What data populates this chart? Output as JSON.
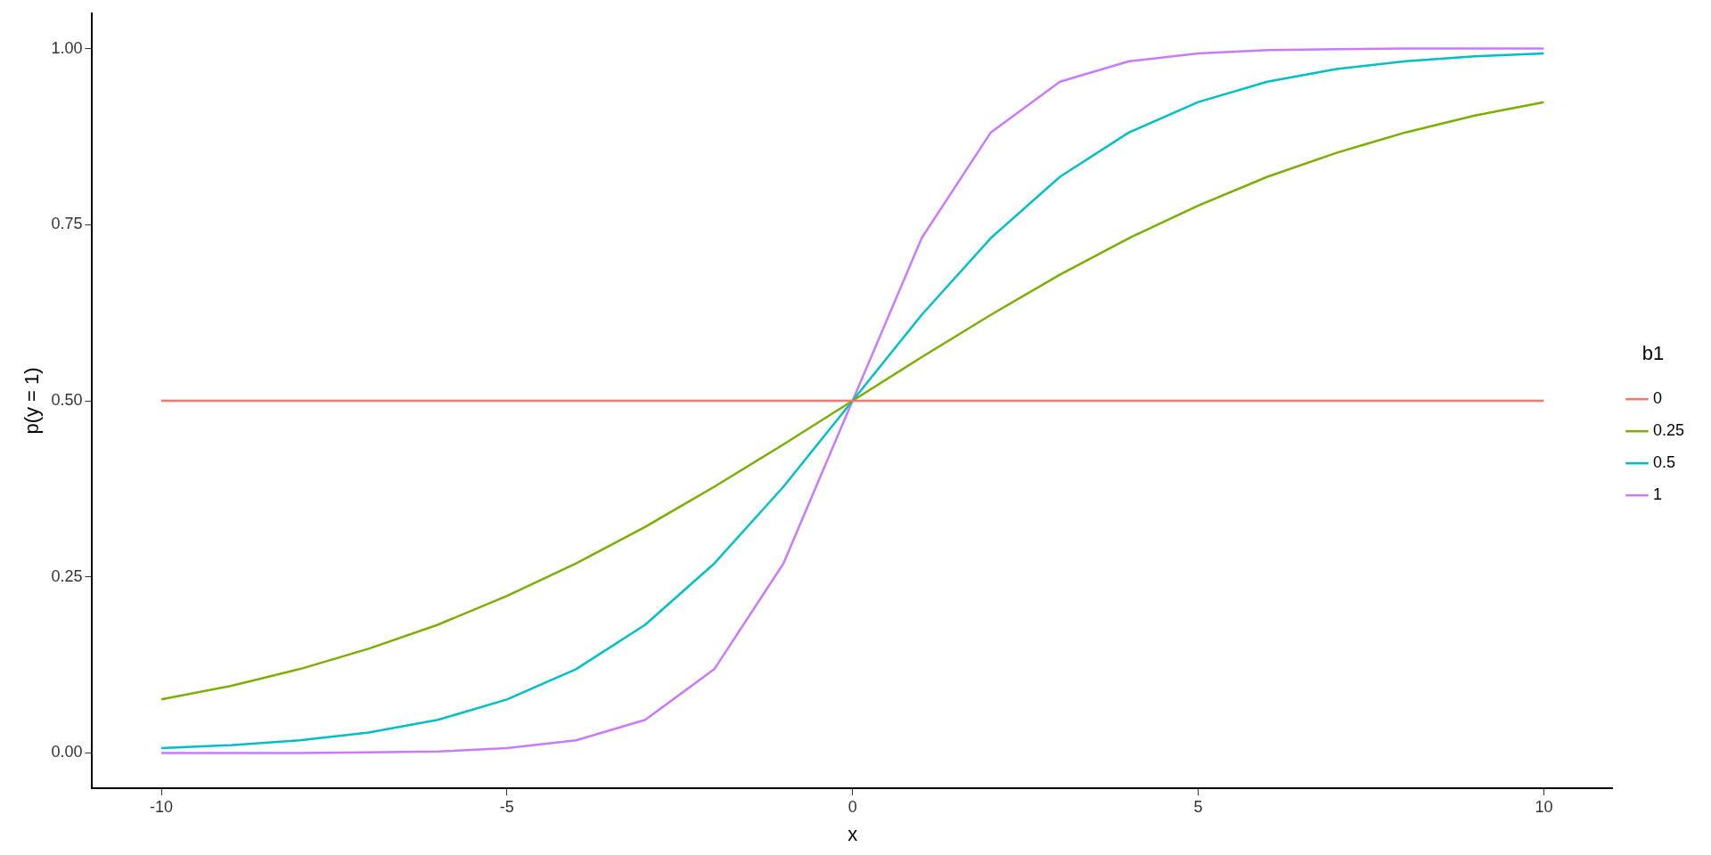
{
  "chart_data": {
    "type": "line",
    "xlabel": "x",
    "ylabel": "p(y = 1)",
    "legend_title": "b1",
    "legend": "right",
    "grid": false,
    "marker": "none",
    "line_style": "solid",
    "x": [
      -10,
      -9,
      -8,
      -7,
      -6,
      -5,
      -4,
      -3,
      -2,
      -1,
      0,
      1,
      2,
      3,
      4,
      5,
      6,
      7,
      8,
      9,
      10
    ],
    "series": [
      {
        "name": "0",
        "color": "#f8766d",
        "values": [
          0.5,
          0.5,
          0.5,
          0.5,
          0.5,
          0.5,
          0.5,
          0.5,
          0.5,
          0.5,
          0.5,
          0.5,
          0.5,
          0.5,
          0.5,
          0.5,
          0.5,
          0.5,
          0.5,
          0.5,
          0.5
        ]
      },
      {
        "name": "0.25",
        "color": "#7cae00",
        "values": [
          0.076,
          0.095,
          0.119,
          0.148,
          0.182,
          0.223,
          0.269,
          0.321,
          0.378,
          0.438,
          0.5,
          0.562,
          0.622,
          0.679,
          0.731,
          0.777,
          0.818,
          0.852,
          0.881,
          0.905,
          0.924
        ]
      },
      {
        "name": "0.5",
        "color": "#00bfc4",
        "values": [
          0.007,
          0.011,
          0.018,
          0.029,
          0.047,
          0.076,
          0.119,
          0.182,
          0.269,
          0.378,
          0.5,
          0.622,
          0.731,
          0.818,
          0.881,
          0.924,
          0.953,
          0.971,
          0.982,
          0.989,
          0.993
        ]
      },
      {
        "name": "1",
        "color": "#c77cff",
        "values": [
          0.0,
          0.0,
          0.0,
          0.001,
          0.002,
          0.007,
          0.018,
          0.047,
          0.119,
          0.269,
          0.5,
          0.731,
          0.881,
          0.953,
          0.982,
          0.993,
          0.998,
          0.999,
          1.0,
          1.0,
          1.0
        ]
      }
    ],
    "xlim": [
      -11,
      11
    ],
    "xticks": [
      -10,
      -5,
      0,
      5,
      10
    ],
    "ylim": [
      -0.05,
      1.05
    ],
    "yticks": [
      {
        "value": 0,
        "label": "0.00"
      },
      {
        "value": 0.25,
        "label": "0.25"
      },
      {
        "value": 0.5,
        "label": "0.50"
      },
      {
        "value": 0.75,
        "label": "0.75"
      },
      {
        "value": 1,
        "label": "1.00"
      }
    ]
  }
}
